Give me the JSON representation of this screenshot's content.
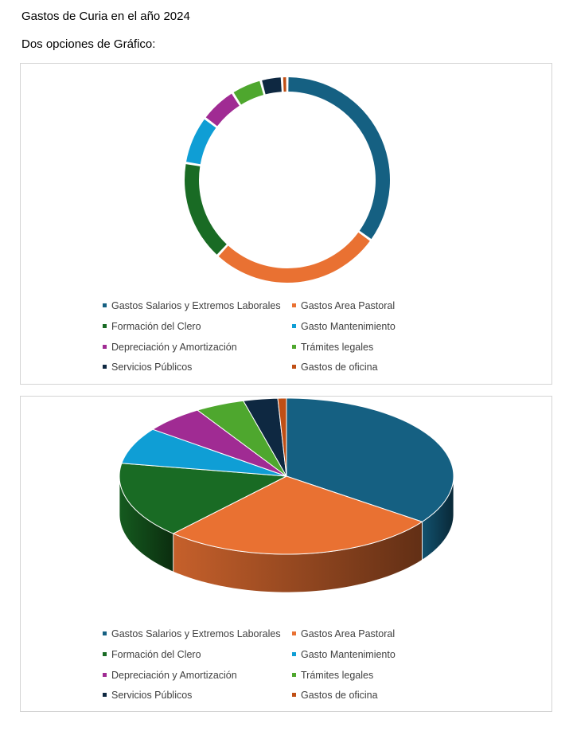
{
  "page": {
    "title": "Gastos de Curia en el año 2024",
    "subtitle": "Dos opciones de Gráfico:"
  },
  "chart_data": [
    {
      "type": "pie",
      "variant": "doughnut",
      "categories": [
        "Gastos Salarios y Extremos Laborales",
        "Gastos Area Pastoral",
        "Formación del Clero",
        "Gasto Mantenimiento",
        "Depreciación y Amortización",
        "Trámites legales",
        "Servicios Públicos",
        "Gastos de oficina"
      ],
      "values": [
        33.6,
        25.9,
        15.2,
        7.3,
        5.6,
        4.6,
        3.2,
        0.8
      ],
      "colors": [
        "#156082",
        "#E97132",
        "#196B24",
        "#0F9ED5",
        "#A02B93",
        "#4EA72E",
        "#0E2841",
        "#C04F15"
      ],
      "legend_position": "bottom"
    },
    {
      "type": "pie",
      "variant": "3d-pie",
      "categories": [
        "Gastos Salarios y Extremos Laborales",
        "Gastos Area Pastoral",
        "Formación del Clero",
        "Gasto Mantenimiento",
        "Depreciación y Amortización",
        "Trámites legales",
        "Servicios Públicos",
        "Gastos de oficina"
      ],
      "values": [
        33.6,
        25.9,
        15.2,
        7.3,
        5.6,
        4.6,
        3.2,
        0.8
      ],
      "colors": [
        "#156082",
        "#E97132",
        "#196B24",
        "#0F9ED5",
        "#A02B93",
        "#4EA72E",
        "#0E2841",
        "#C04F15"
      ],
      "legend_position": "bottom"
    }
  ]
}
